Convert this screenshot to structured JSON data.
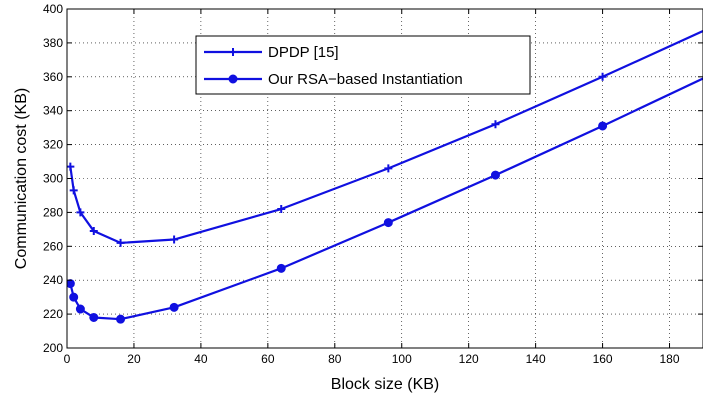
{
  "chart_data": {
    "type": "line",
    "xlabel": "Block size (KB)",
    "ylabel": "Communication cost (KB)",
    "xlim": [
      0,
      190
    ],
    "ylim": [
      200,
      400
    ],
    "xticks": [
      0,
      20,
      40,
      60,
      80,
      100,
      120,
      140,
      160,
      180
    ],
    "yticks": [
      200,
      220,
      240,
      260,
      280,
      300,
      320,
      340,
      360,
      380,
      400
    ],
    "grid": true,
    "legend_position": "top-center",
    "series": [
      {
        "name": "DPDP [15]",
        "marker": "plus",
        "color": "#1010e0",
        "x": [
          1,
          2,
          4,
          8,
          16,
          32,
          64,
          96,
          128,
          160,
          190
        ],
        "y": [
          307,
          293,
          280,
          269,
          262,
          264,
          282,
          306,
          332,
          360,
          387
        ]
      },
      {
        "name": "Our RSA−based Instantiation",
        "marker": "circle",
        "color": "#1010e0",
        "x": [
          1,
          2,
          4,
          8,
          16,
          32,
          64,
          96,
          128,
          160,
          190
        ],
        "y": [
          238,
          230,
          223,
          218,
          217,
          224,
          247,
          274,
          302,
          331,
          359
        ]
      }
    ]
  }
}
